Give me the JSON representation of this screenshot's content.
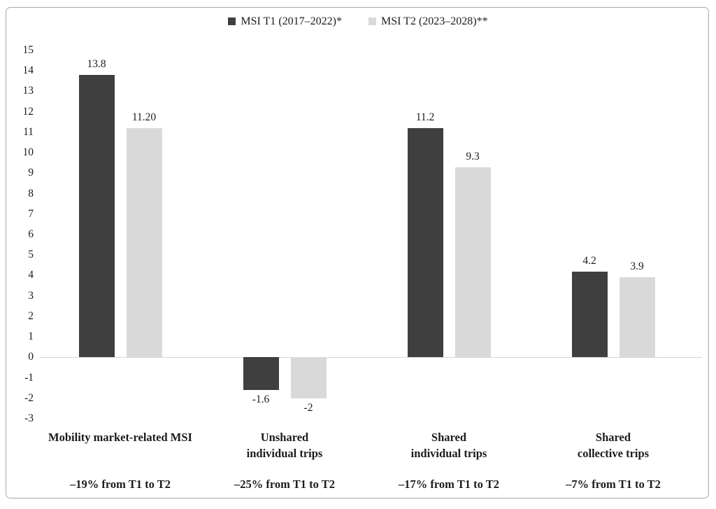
{
  "figure": {
    "background": "#ffffff",
    "border_color": "#a9a9a9"
  },
  "legend": {
    "position": "top-center",
    "items": [
      {
        "label": "MSI T1 (2017–2022)*",
        "color": "#3f3f3f"
      },
      {
        "label": "MSI T2 (2023–2028)**",
        "color": "#d9d9d9"
      }
    ]
  },
  "chart_data": {
    "type": "bar",
    "title": "",
    "xlabel": "",
    "ylabel": "",
    "categories": [
      "Mobility market-related MSI",
      "Unshared\nindividual trips",
      "Shared\nindividual trips",
      "Shared\ncollective trips"
    ],
    "change_labels": [
      "–19% from T1 to T2",
      "–25% from T1 to T2",
      "–17% from T1 to T2",
      "–7% from T1 to T2"
    ],
    "series": [
      {
        "name": "MSI T1 (2017–2022)*",
        "color": "#3f3f3f",
        "values": [
          13.8,
          -1.6,
          11.2,
          4.2
        ],
        "value_labels": [
          "13.8",
          "-1.6",
          "11.2",
          "4.2"
        ]
      },
      {
        "name": "MSI T2 (2023–2028)**",
        "color": "#d9d9d9",
        "values": [
          11.2,
          -2,
          9.3,
          3.9
        ],
        "value_labels": [
          "11.20",
          "-2",
          "9.3",
          "3.9"
        ]
      }
    ],
    "y_axis": {
      "min": -3,
      "max": 15,
      "step": 1,
      "ticks": [
        15,
        14,
        13,
        12,
        11,
        10,
        9,
        8,
        7,
        6,
        5,
        4,
        3,
        2,
        1,
        0,
        -1,
        -2,
        -3
      ]
    },
    "grid": false,
    "legend_position": "top",
    "zero_line_color": "#d6d6d6"
  }
}
